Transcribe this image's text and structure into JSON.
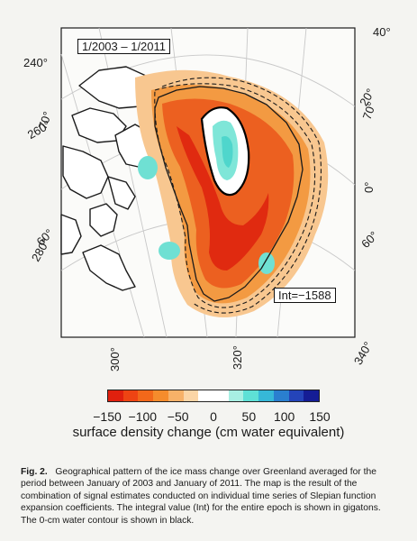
{
  "map": {
    "period": "1/2003 – 1/2011",
    "integral": "Int=−1588",
    "longitude_ticks": [
      "240°",
      "260°",
      "280°",
      "300°",
      "320°",
      "340°",
      "0°",
      "20°",
      "40°"
    ],
    "latitude_ticks": [
      "70°",
      "60°",
      "70°",
      "60°"
    ]
  },
  "colorbar": {
    "label": "surface density change (cm water equivalent)",
    "ticks": [
      "−150",
      "−100",
      "−50",
      "0",
      "50",
      "100",
      "150"
    ],
    "colors": [
      "#e0200e",
      "#ee4413",
      "#f2681a",
      "#f58c2c",
      "#f7b168",
      "#fbd5a6",
      "#ffffff",
      "#ffffff",
      "#a8efe3",
      "#5ee0d6",
      "#36b8d8",
      "#2a7fcf",
      "#2444b9",
      "#151d95"
    ]
  },
  "caption": {
    "label": "Fig. 2.",
    "text": "Geographical pattern of the ice mass change over Greenland averaged for the period between January of 2003 and January of 2011. The map is the result of the combination of signal estimates conducted on individual time series of Slepian function expansion coefficients. The integral value (Int) for the entire epoch is shown in gigatons. The 0-cm water contour is shown in black."
  }
}
